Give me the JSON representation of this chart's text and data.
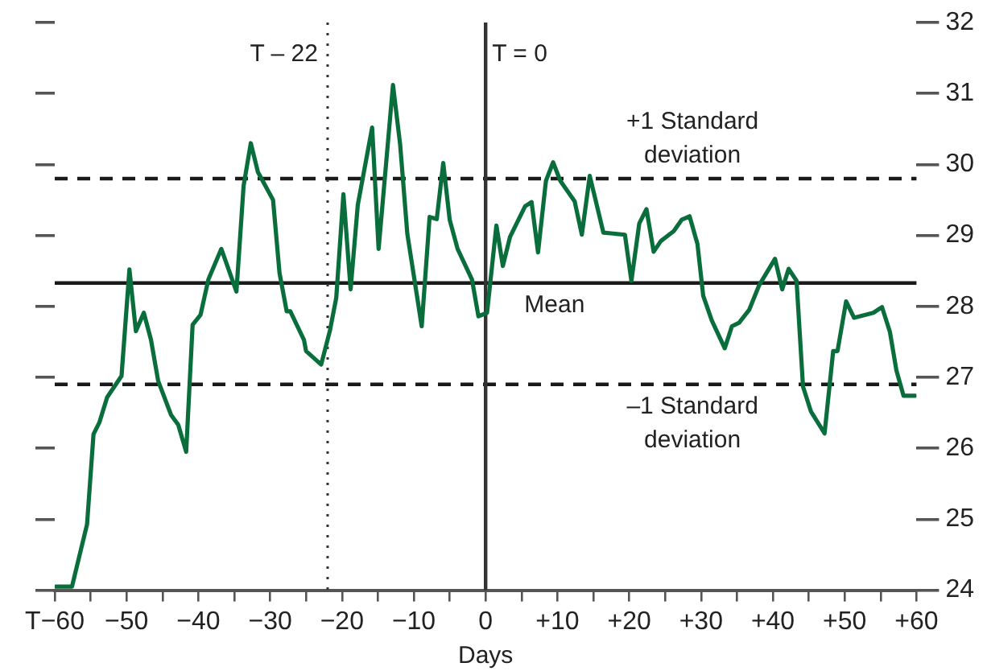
{
  "chart_data": {
    "type": "line",
    "xlabel": "Days",
    "xlim": [
      -60,
      60
    ],
    "xticks": [
      {
        "value": -60,
        "label": "T−60"
      },
      {
        "value": -55,
        "label": null
      },
      {
        "value": -50,
        "label": "−50"
      },
      {
        "value": -45,
        "label": null
      },
      {
        "value": -40,
        "label": "−40"
      },
      {
        "value": -35,
        "label": null
      },
      {
        "value": -30,
        "label": "−30"
      },
      {
        "value": -25,
        "label": null
      },
      {
        "value": -20,
        "label": "−20"
      },
      {
        "value": -15,
        "label": null
      },
      {
        "value": -10,
        "label": "−10"
      },
      {
        "value": -5,
        "label": null
      },
      0,
      {
        "value": 5,
        "label": null
      },
      {
        "value": 10,
        "label": "+10"
      },
      {
        "value": 15,
        "label": null
      },
      {
        "value": 20,
        "label": "+20"
      },
      {
        "value": 25,
        "label": null
      },
      {
        "value": 30,
        "label": "+30"
      },
      {
        "value": 35,
        "label": null
      },
      {
        "value": 40,
        "label": "+40"
      },
      {
        "value": 45,
        "label": null
      },
      {
        "value": 50,
        "label": "+50"
      },
      {
        "value": 55,
        "label": null
      },
      {
        "value": 60,
        "label": "+60"
      }
    ],
    "ylim": [
      24,
      32
    ],
    "yticks": [
      24,
      25,
      26,
      27,
      28,
      29,
      30,
      31,
      32
    ],
    "grid": false,
    "legend": false,
    "marker": "none",
    "line_style": "solid",
    "series": [
      {
        "color": "#0a6e3c",
        "x": [
          -60,
          -57.6,
          -55.5,
          -54.6,
          -53.8,
          -52.7,
          -50.7,
          -49.6,
          -48.7,
          -47.6,
          -46.6,
          -45.6,
          -43.8,
          -42.8,
          -41.7,
          -40.8,
          -39.7,
          -38.6,
          -36.8,
          -34.7,
          -33.7,
          -32.7,
          -31.7,
          -29.6,
          -28.7,
          -27.7,
          -27.2,
          -25.3,
          -25,
          -22.9,
          -21.7,
          -20.8,
          -19.8,
          -18.8,
          -17.8,
          -15.8,
          -14.9,
          -12.9,
          -11.9,
          -10.9,
          -8.9,
          -7.8,
          -6.8,
          -5.9,
          -5,
          -3.9,
          -1.9,
          -1,
          0.2,
          1.5,
          2.4,
          3.4,
          5.5,
          6.4,
          7.3,
          8.4,
          9.4,
          10.4,
          12.4,
          13.4,
          14.5,
          16.4,
          19.4,
          20.3,
          21.4,
          22.4,
          23.4,
          24.4,
          26.2,
          27.3,
          28.4,
          29.5,
          30.3,
          31.5,
          33.3,
          34.3,
          35.3,
          36.7,
          38.1,
          40.3,
          41.3,
          42.2,
          43.3,
          44.2,
          45.3,
          47.2,
          48.4,
          49,
          50.2,
          51.3,
          54,
          55.2,
          56.3,
          57.2,
          58.2,
          59.8
        ],
        "values": [
          24.05,
          24.05,
          24.93,
          26.2,
          26.36,
          26.72,
          27.02,
          28.52,
          27.65,
          27.91,
          27.53,
          26.95,
          26.47,
          26.33,
          25.95,
          27.74,
          27.88,
          28.38,
          28.81,
          28.21,
          29.7,
          30.3,
          29.89,
          29.5,
          28.47,
          27.93,
          27.93,
          27.53,
          27.37,
          27.18,
          27.65,
          28.12,
          29.58,
          28.24,
          29.43,
          30.52,
          28.81,
          31.12,
          30.28,
          29.02,
          27.72,
          29.26,
          29.23,
          30.02,
          29.22,
          28.81,
          28.38,
          27.86,
          27.91,
          29.14,
          28.57,
          28.98,
          29.41,
          29.47,
          28.76,
          29.77,
          30.03,
          29.77,
          29.48,
          29.01,
          29.84,
          29.04,
          29.01,
          28.36,
          29.17,
          29.37,
          28.77,
          28.92,
          29.06,
          29.22,
          29.27,
          28.88,
          28.15,
          27.8,
          27.41,
          27.72,
          27.77,
          27.95,
          28.3,
          28.67,
          28.24,
          28.53,
          28.36,
          26.87,
          26.52,
          26.21,
          27.37,
          27.37,
          28.07,
          27.84,
          27.91,
          27.99,
          27.64,
          27.1,
          26.74,
          26.74
        ]
      }
    ],
    "ref_lines": [
      {
        "axis": "y",
        "value": 28.33,
        "color": "#1a1a1a",
        "line_style": "solid",
        "label": "Mean"
      },
      {
        "axis": "y",
        "value": 29.8,
        "color": "#1a1a1a",
        "line_style": "dashed",
        "label": "+1 Standard deviation"
      },
      {
        "axis": "y",
        "value": 26.9,
        "color": "#1a1a1a",
        "line_style": "dashed",
        "label": "–1 Standard deviation"
      },
      {
        "axis": "x",
        "value": -22,
        "color": "#333333",
        "line_style": "dotted",
        "label": "T – 22"
      },
      {
        "axis": "x",
        "value": 0,
        "color": "#333333",
        "line_style": "solid",
        "label": "T = 0"
      }
    ]
  }
}
